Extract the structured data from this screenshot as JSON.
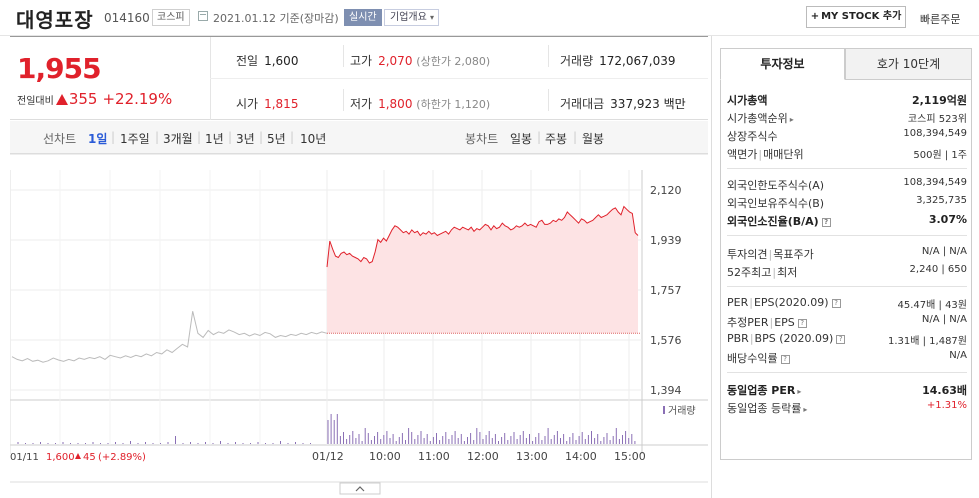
{
  "header": {
    "name": "대영포장",
    "code": "014160",
    "market": "코스피",
    "date": "2021.01.12 기준(장마감)",
    "live": "실시간",
    "company": "기업개요",
    "mystock": "MY STOCK 추가",
    "quick": "빠른주문"
  },
  "price": {
    "current": "1,955",
    "change_label": "전일대비",
    "change": "355",
    "change_pct": "+22.19%"
  },
  "stats": {
    "prev_label": "전일",
    "prev": "1,600",
    "high_label": "고가",
    "high": "2,070",
    "upper_limit": "(상한가 2,080)",
    "volume_label": "거래량",
    "volume": "172,067,039",
    "open_label": "시가",
    "open": "1,815",
    "low_label": "저가",
    "low": "1,800",
    "lower_limit": "(하한가 1,120)",
    "amount_label": "거래대금",
    "amount": "337,923 백만"
  },
  "period": {
    "line_label": "선차트",
    "items": [
      "1일",
      "1주일",
      "3개월",
      "1년",
      "3년",
      "5년",
      "10년"
    ],
    "candle_label": "봉차트",
    "candles": [
      "일봉",
      "주봉",
      "월봉"
    ]
  },
  "chart_data": {
    "type": "line",
    "y_ticks": [
      "2,120",
      "1,939",
      "1,757",
      "1,576",
      "1,394"
    ],
    "ylim": [
      1394,
      2120
    ],
    "x_ticks": [
      "01/12",
      "10:00",
      "11:00",
      "12:00",
      "13:00",
      "14:00",
      "15:00"
    ],
    "prev_session_label": "01/11",
    "prev_session_close": "1,600",
    "prev_session_change": "45",
    "prev_session_pct": "(+2.89%)",
    "volume_label": "거래량",
    "prev_close_ref": 1600,
    "colors": {
      "up": "#e0212b",
      "fill": "#fde3e4",
      "prev": "#bbbbbb",
      "volume": "#8a6fb5"
    },
    "series": [
      {
        "values": [
          1515,
          1505,
          1500,
          1508,
          1498,
          1502,
          1495,
          1500,
          1510,
          1503,
          1498,
          1505,
          1500,
          1510,
          1505,
          1512,
          1508,
          1515,
          1505,
          1520,
          1515,
          1510,
          1518,
          1512,
          1520,
          1515,
          1525,
          1518,
          1530,
          1525,
          1540,
          1530,
          1545,
          1560,
          1550,
          1680,
          1600,
          1585,
          1610,
          1595,
          1605,
          1600,
          1612,
          1605,
          1595,
          1600,
          1590,
          1598,
          1592,
          1603,
          1598,
          1585,
          1592,
          1588,
          1596,
          1592,
          1600,
          1595,
          1603,
          1598,
          1605,
          1600
        ]
      },
      {
        "values": [
          1840,
          1935,
          1905,
          1880,
          1875,
          1890,
          1895,
          1885,
          1890,
          1880,
          1875,
          1870,
          1860,
          1875,
          1870,
          1855,
          1860,
          1895,
          1940,
          1930,
          1945,
          1935,
          1955,
          1975,
          1990,
          1985,
          1975,
          1965,
          1970,
          1960,
          1975,
          1965,
          1970,
          1955,
          1965,
          1960,
          1970,
          1960,
          1965,
          1955,
          1960,
          1965,
          1970,
          1960,
          1975,
          1985,
          1980,
          1975,
          1985,
          1980,
          1975,
          1985,
          1970,
          1980,
          1975,
          1985,
          1995,
          1990,
          1975,
          1990,
          1980,
          1985,
          2000,
          1990,
          1985,
          1975,
          1980,
          1990,
          1985,
          1990,
          2000,
          1990,
          1995,
          1990,
          1985,
          2005,
          2010,
          1995,
          1995,
          2000,
          2010,
          2005,
          2015,
          2010,
          2020,
          2040,
          2030,
          2020,
          2010,
          2000,
          2015,
          2010,
          2000,
          2005,
          2010,
          2020,
          2030,
          2020,
          2025,
          2030,
          2040,
          2050,
          2055,
          2040,
          2030,
          2060,
          2050,
          2040,
          2035,
          1965,
          1955
        ]
      }
    ]
  },
  "info": {
    "tab_active": "투자정보",
    "tab_other": "호가 10단계",
    "market_cap_label": "시가총액",
    "market_cap": "2,119억원",
    "rank_label": "시가총액순위",
    "rank": "코스피 523위",
    "shares_label": "상장주식수",
    "shares": "108,394,549",
    "par_label": "액면가",
    "unit_label": "매매단위",
    "par_unit": "500원 | 1주",
    "foreign_limit_label": "외국인한도주식수(A)",
    "foreign_limit": "108,394,549",
    "foreign_hold_label": "외국인보유주식수(B)",
    "foreign_hold": "3,325,735",
    "foreign_rate_label": "외국인소진율(B/A)",
    "foreign_rate": "3.07%",
    "opinion_label": "투자의견",
    "target_label": "목표주가",
    "opinion_target": "N/A | N/A",
    "week52_label": "52주최고",
    "week52_low_label": "최저",
    "week52": "2,240 | 650",
    "per_label": "PER",
    "eps_label": "EPS(2020.09)",
    "per_eps": "45.47배 | 43원",
    "est_per_label": "추정PER",
    "est_eps_label": "EPS",
    "est_per_eps": "N/A | N/A",
    "pbr_label": "PBR",
    "bps_label": "BPS (2020.09)",
    "pbr_bps": "1.31배 | 1,487원",
    "div_label": "배당수익률",
    "div": "N/A",
    "ind_per_label": "동일업종 PER",
    "ind_per": "14.63배",
    "ind_rate_label": "동일업종 등락률",
    "ind_rate": "+1.31%"
  }
}
